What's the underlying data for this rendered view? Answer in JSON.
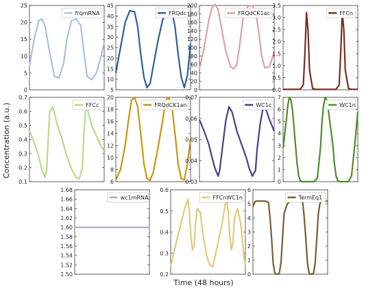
{
  "figure": {
    "ylabel": "Concentration (a.u.)",
    "xlabel": "Time (48 hours)"
  },
  "chart_data": [
    {
      "type": "line",
      "name": "frqmRNA",
      "color": "#a8bfe6",
      "ylim": [
        0,
        25
      ],
      "yticks": [
        "0",
        "5",
        "10",
        "15",
        "20",
        "25"
      ],
      "x": [
        0,
        3,
        6,
        8,
        10,
        13,
        16,
        19,
        22,
        24,
        27,
        30,
        33,
        35,
        37,
        40,
        43,
        46,
        48
      ],
      "y": [
        7,
        15,
        20.5,
        21,
        19,
        11,
        4,
        3.5,
        8,
        15,
        20.5,
        21,
        19,
        11,
        4,
        3,
        5,
        10,
        14
      ]
    },
    {
      "type": "line",
      "name": "FRQdc",
      "color": "#2e5d9a",
      "ylim": [
        5,
        45
      ],
      "yticks": [
        "5",
        "10",
        "15",
        "20",
        "25",
        "30",
        "35",
        "40",
        "45"
      ],
      "x": [
        0,
        3,
        6,
        9,
        12,
        14,
        16,
        18,
        20,
        22,
        24,
        27,
        30,
        33,
        36,
        38,
        40,
        42,
        44,
        46,
        48
      ],
      "y": [
        13,
        25,
        37,
        42.5,
        42,
        35,
        22,
        11,
        6,
        8,
        16,
        28,
        38,
        42.5,
        42,
        35,
        22,
        11,
        6,
        12,
        27
      ]
    },
    {
      "type": "line",
      "name": "FRQdCK1ac",
      "color": "#d9a39e",
      "ylim": [
        0,
        200
      ],
      "yticks": [
        "0",
        "20",
        "40",
        "60",
        "80",
        "100",
        "120",
        "140",
        "160",
        "180",
        "200"
      ],
      "x": [
        0,
        3,
        6,
        8,
        10,
        12,
        14,
        17,
        20,
        22,
        24,
        26,
        28,
        31,
        34,
        36,
        38,
        40,
        42,
        45,
        48
      ],
      "y": [
        50,
        100,
        165,
        195,
        203,
        190,
        150,
        90,
        55,
        50,
        60,
        110,
        170,
        198,
        200,
        185,
        140,
        80,
        52,
        55,
        90
      ]
    },
    {
      "type": "line",
      "name": "FFCn",
      "color": "#7a2a1e",
      "ylim": [
        0,
        3.5
      ],
      "yticks": [
        "0.0",
        "0.5",
        "1.0",
        "1.5",
        "2.0",
        "2.5",
        "3.0",
        "3.5"
      ],
      "x": [
        0,
        8,
        11,
        13,
        14,
        15,
        16,
        17,
        19,
        21,
        31,
        34,
        36,
        37,
        38,
        39,
        40,
        42,
        44,
        48
      ],
      "y": [
        0.02,
        0.02,
        0.02,
        0.2,
        1.5,
        3.2,
        2.5,
        0.8,
        0.05,
        0.02,
        0.02,
        0.02,
        0.2,
        1.5,
        3.2,
        2.5,
        0.8,
        0.05,
        0.02,
        0.02
      ]
    },
    {
      "type": "line",
      "name": "FFCc",
      "color": "#b5db8a",
      "ylim": [
        0.1,
        0.7
      ],
      "yticks": [
        "0.1",
        "0.2",
        "0.3",
        "0.4",
        "0.5",
        "0.6",
        "0.7"
      ],
      "x": [
        0,
        3,
        6,
        8,
        10,
        11,
        12,
        13,
        15,
        18,
        21,
        24,
        27,
        30,
        32,
        34,
        35,
        36,
        37,
        38,
        40,
        42,
        44,
        46,
        48
      ],
      "y": [
        0.46,
        0.38,
        0.28,
        0.18,
        0.13,
        0.18,
        0.4,
        0.6,
        0.63,
        0.5,
        0.4,
        0.28,
        0.19,
        0.13,
        0.12,
        0.2,
        0.45,
        0.6,
        0.63,
        0.58,
        0.5,
        0.45,
        0.4,
        0.35,
        0.32
      ]
    },
    {
      "type": "line",
      "name": "FRQdCK1an",
      "color": "#c8950e",
      "ylim": [
        6,
        20
      ],
      "yticks": [
        "6",
        "8",
        "10",
        "12",
        "14",
        "16",
        "18",
        "20"
      ],
      "x": [
        0,
        3,
        6,
        8,
        10,
        12,
        14,
        16,
        18,
        20,
        22,
        24,
        27,
        30,
        32,
        34,
        36,
        38,
        40,
        42,
        44,
        46,
        48
      ],
      "y": [
        6.3,
        8,
        12,
        16,
        19.5,
        20,
        18.5,
        14,
        9,
        6.5,
        6.2,
        7.5,
        11.5,
        16,
        19.5,
        20,
        18.5,
        14,
        9,
        6.5,
        6.3,
        9,
        13
      ]
    },
    {
      "type": "line",
      "name": "WC1c",
      "color": "#4a3a8c",
      "ylim": [
        0.025,
        0.07
      ],
      "yticks": [
        "0.03",
        "0.04",
        "0.05",
        "0.06",
        "0.07"
      ],
      "x": [
        0,
        3,
        6,
        8,
        10,
        12,
        13,
        15,
        17,
        19,
        21,
        24,
        27,
        30,
        32,
        34,
        36,
        37,
        39,
        41,
        43,
        45,
        48
      ],
      "y": [
        0.058,
        0.052,
        0.045,
        0.038,
        0.032,
        0.028,
        0.031,
        0.045,
        0.058,
        0.065,
        0.062,
        0.052,
        0.045,
        0.038,
        0.032,
        0.028,
        0.031,
        0.042,
        0.056,
        0.065,
        0.063,
        0.058,
        0.052
      ]
    },
    {
      "type": "line",
      "name": "WC1n",
      "color": "#4c8c2b",
      "ylim": [
        0,
        7
      ],
      "yticks": [
        "0",
        "1",
        "2",
        "3",
        "4",
        "5",
        "6",
        "7"
      ],
      "x": [
        0,
        2,
        3,
        4,
        5,
        6,
        8,
        9,
        10,
        11,
        12,
        15,
        18,
        20,
        22,
        24,
        25,
        26,
        27,
        28,
        29,
        30,
        32,
        33,
        34,
        35,
        36,
        39,
        42,
        44,
        46,
        48
      ],
      "y": [
        2.8,
        5,
        6.3,
        7,
        6.8,
        6,
        3,
        1.5,
        0.5,
        0.1,
        0,
        0,
        0,
        0,
        0.3,
        2.8,
        5,
        6.3,
        7,
        6.8,
        6,
        5,
        3,
        1.5,
        0.5,
        0.1,
        0,
        0,
        0,
        0.5,
        3,
        5.8
      ]
    },
    {
      "type": "line",
      "name": "wc1mRNA",
      "color": "#b3a6d6",
      "ylim": [
        1.5,
        1.68
      ],
      "yticks": [
        "1.50",
        "1.52",
        "1.54",
        "1.56",
        "1.58",
        "1.60",
        "1.62",
        "1.64",
        "1.66",
        "1.68"
      ],
      "x": [
        0,
        48
      ],
      "y": [
        1.6,
        1.6
      ]
    },
    {
      "type": "line",
      "name": "FFCnWC1n",
      "color": "#e3c87a",
      "ylim": [
        0.15,
        0.6
      ],
      "yticks": [
        "0.2",
        "0.3",
        "0.4",
        "0.5",
        "0.6"
      ],
      "x": [
        0,
        3,
        6,
        9,
        11,
        12,
        13,
        14,
        15,
        16,
        17,
        19,
        21,
        23,
        25,
        27,
        30,
        33,
        35,
        36,
        37,
        38,
        39,
        40,
        41,
        43,
        45,
        47,
        48
      ],
      "y": [
        0.19,
        0.3,
        0.4,
        0.5,
        0.55,
        0.48,
        0.35,
        0.28,
        0.3,
        0.42,
        0.5,
        0.48,
        0.35,
        0.25,
        0.2,
        0.19,
        0.3,
        0.42,
        0.52,
        0.55,
        0.48,
        0.35,
        0.28,
        0.32,
        0.45,
        0.5,
        0.42,
        0.25,
        0.2
      ]
    },
    {
      "type": "line",
      "name": "TermEq1",
      "color": "#7b5a2f",
      "ylim": [
        0,
        6
      ],
      "yticks": [
        "0",
        "1",
        "2",
        "3",
        "4",
        "5",
        "6"
      ],
      "x": [
        0,
        1,
        2,
        8,
        10,
        11,
        12,
        13,
        14,
        15,
        16,
        17,
        18,
        19,
        20,
        22,
        24,
        30,
        32,
        33,
        34,
        35,
        36,
        37,
        38,
        39,
        40,
        41,
        42,
        43,
        44,
        46,
        48
      ],
      "y": [
        4.8,
        5.1,
        5.2,
        5.2,
        5.1,
        4,
        2.5,
        0.8,
        0.1,
        0,
        0,
        0.1,
        0.8,
        2.5,
        4.3,
        5,
        5.2,
        5.2,
        5.1,
        4,
        2.5,
        0.8,
        0.1,
        0,
        0,
        0.1,
        0.8,
        2.5,
        4.3,
        5,
        5.2,
        5.2,
        5.2
      ]
    }
  ]
}
